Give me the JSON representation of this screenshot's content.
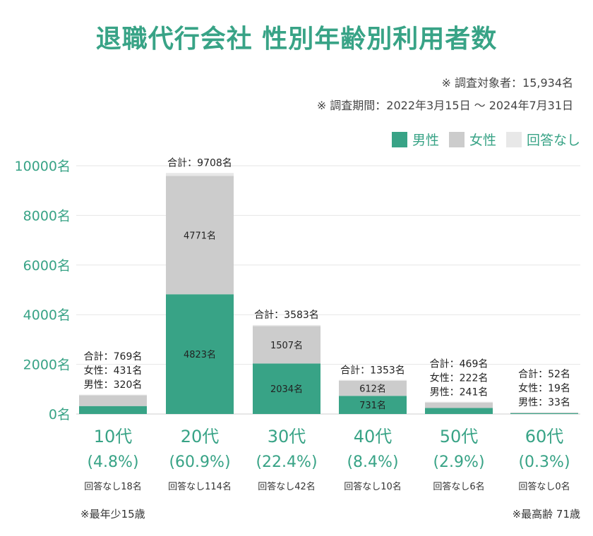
{
  "header": {
    "title": "退職代行会社 性別年齢別利用者数",
    "note_total": "※ 調査対象者：15,934名",
    "note_period": "※ 調査期間：2022年3月15日 〜 2024年7月31日"
  },
  "legend": [
    {
      "label": "男性",
      "color": "#38a386"
    },
    {
      "label": "女性",
      "color": "#cccccc"
    },
    {
      "label": "回答なし",
      "color": "#e8e8e8"
    }
  ],
  "chart_data": {
    "type": "bar",
    "stacked": true,
    "title": "退職代行会社 性別年齢別利用者数",
    "categories": [
      "10代",
      "20代",
      "30代",
      "40代",
      "50代",
      "60代"
    ],
    "percents": [
      "(4.8%)",
      "(60.9%)",
      "(22.4%)",
      "(8.4%)",
      "(2.9%)",
      "(0.3%)"
    ],
    "no_answer_labels": [
      "回答なし18名",
      "回答なし114名",
      "回答なし42名",
      "回答なし10名",
      "回答なし6名",
      "回答なし0名"
    ],
    "series": [
      {
        "name": "男性",
        "values": [
          320,
          4823,
          2034,
          731,
          241,
          33
        ],
        "color": "#38a386"
      },
      {
        "name": "女性",
        "values": [
          431,
          4771,
          1507,
          612,
          222,
          19
        ],
        "color": "#cccccc"
      },
      {
        "name": "回答なし",
        "values": [
          18,
          114,
          42,
          10,
          6,
          0
        ],
        "color": "#e8e8e8"
      }
    ],
    "totals": [
      769,
      9708,
      3583,
      1353,
      469,
      52
    ],
    "annotations": [
      [
        "合計：769名",
        "女性：431名",
        "男性：320名"
      ],
      [
        "合計：9708名"
      ],
      [
        "合計：3583名"
      ],
      [
        "合計：1353名"
      ],
      [
        "合計：469名",
        "女性：222名",
        "男性：241名"
      ],
      [
        "合計：52名",
        "女性：19名",
        "男性：33名"
      ]
    ],
    "inner_labels": [
      {
        "male": "",
        "female": ""
      },
      {
        "male": "4823名",
        "female": "4771名"
      },
      {
        "male": "2034名",
        "female": "1507名"
      },
      {
        "male": "731名",
        "female": "612名"
      },
      {
        "male": "",
        "female": ""
      },
      {
        "male": "",
        "female": ""
      }
    ],
    "yticks": [
      "0名",
      "2000名",
      "4000名",
      "6000名",
      "8000名",
      "10000名"
    ],
    "ylim": [
      0,
      10000
    ],
    "xlabel": "",
    "ylabel": ""
  },
  "footer": {
    "min_age": "※最年少15歳",
    "max_age": "※最高齢 71歳"
  }
}
